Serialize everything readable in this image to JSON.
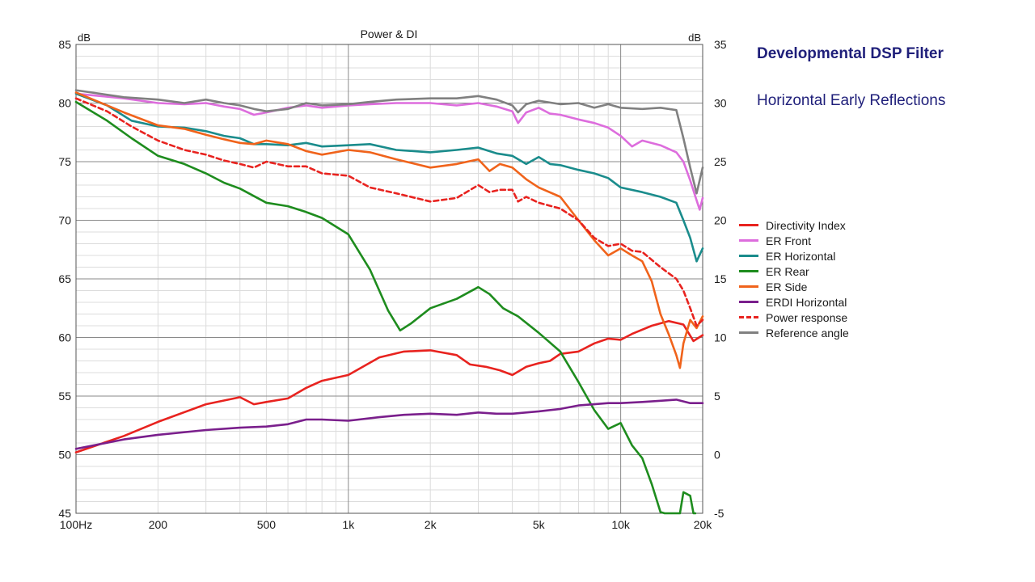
{
  "slide": {
    "heading": "Developmental DSP Filter",
    "subheading": "Horizontal Early Reflections"
  },
  "chart_data": {
    "type": "line",
    "title": "Power & DI",
    "x_scale": "log",
    "xlim": [
      100,
      20000
    ],
    "x_tick_values": [
      100,
      200,
      500,
      1000,
      2000,
      5000,
      10000,
      20000
    ],
    "x_tick_labels": [
      "100Hz",
      "200",
      "500",
      "1k",
      "2k",
      "5k",
      "10k",
      "20k"
    ],
    "y_left": {
      "unit": "dB",
      "lim": [
        45,
        85
      ],
      "ticks": [
        "85",
        "80",
        "75",
        "70",
        "65",
        "60",
        "55",
        "50",
        "45"
      ]
    },
    "y_right": {
      "unit": "dB",
      "lim": [
        -5,
        35
      ],
      "ticks": [
        "35",
        "30",
        "25",
        "20",
        "15",
        "10",
        "5",
        "0",
        "-5"
      ]
    },
    "grid": true,
    "legend_position": "right",
    "series": [
      {
        "name": "Directivity Index",
        "axis": "right",
        "color": "#e8231f",
        "dash": false,
        "points": [
          [
            100,
            0.2
          ],
          [
            150,
            1.6
          ],
          [
            200,
            2.8
          ],
          [
            300,
            4.3
          ],
          [
            400,
            4.9
          ],
          [
            450,
            4.3
          ],
          [
            500,
            4.5
          ],
          [
            600,
            4.8
          ],
          [
            700,
            5.7
          ],
          [
            800,
            6.3
          ],
          [
            1000,
            6.8
          ],
          [
            1300,
            8.3
          ],
          [
            1600,
            8.8
          ],
          [
            2000,
            8.9
          ],
          [
            2500,
            8.5
          ],
          [
            2800,
            7.7
          ],
          [
            3200,
            7.5
          ],
          [
            3600,
            7.2
          ],
          [
            4000,
            6.8
          ],
          [
            4500,
            7.5
          ],
          [
            5000,
            7.8
          ],
          [
            5500,
            8.0
          ],
          [
            6000,
            8.6
          ],
          [
            7000,
            8.8
          ],
          [
            8000,
            9.5
          ],
          [
            9000,
            9.9
          ],
          [
            10000,
            9.8
          ],
          [
            11000,
            10.3
          ],
          [
            13000,
            11.0
          ],
          [
            15000,
            11.4
          ],
          [
            17000,
            11.1
          ],
          [
            18500,
            9.7
          ],
          [
            20000,
            10.2
          ]
        ]
      },
      {
        "name": "ER Front",
        "axis": "left",
        "color": "#dd6ddd",
        "dash": false,
        "points": [
          [
            100,
            80.8
          ],
          [
            150,
            80.4
          ],
          [
            200,
            80.0
          ],
          [
            250,
            79.9
          ],
          [
            300,
            80.0
          ],
          [
            350,
            79.7
          ],
          [
            400,
            79.5
          ],
          [
            450,
            79.0
          ],
          [
            500,
            79.2
          ],
          [
            600,
            79.6
          ],
          [
            700,
            79.8
          ],
          [
            800,
            79.6
          ],
          [
            1000,
            79.8
          ],
          [
            1200,
            79.9
          ],
          [
            1500,
            80.0
          ],
          [
            2000,
            80.0
          ],
          [
            2500,
            79.8
          ],
          [
            3000,
            80.0
          ],
          [
            3500,
            79.7
          ],
          [
            4000,
            79.3
          ],
          [
            4200,
            78.3
          ],
          [
            4500,
            79.2
          ],
          [
            5000,
            79.6
          ],
          [
            5500,
            79.1
          ],
          [
            6000,
            79.0
          ],
          [
            7000,
            78.6
          ],
          [
            8000,
            78.3
          ],
          [
            9000,
            77.9
          ],
          [
            10000,
            77.2
          ],
          [
            11000,
            76.3
          ],
          [
            12000,
            76.8
          ],
          [
            14000,
            76.4
          ],
          [
            16000,
            75.8
          ],
          [
            17000,
            75.0
          ],
          [
            18000,
            73.4
          ],
          [
            19000,
            71.7
          ],
          [
            19500,
            70.9
          ],
          [
            20000,
            71.9
          ]
        ]
      },
      {
        "name": "ER Horizontal",
        "axis": "left",
        "color": "#1a8c8c",
        "dash": false,
        "points": [
          [
            100,
            80.8
          ],
          [
            130,
            79.8
          ],
          [
            160,
            78.5
          ],
          [
            200,
            78.0
          ],
          [
            250,
            77.9
          ],
          [
            300,
            77.6
          ],
          [
            350,
            77.2
          ],
          [
            400,
            77.0
          ],
          [
            450,
            76.5
          ],
          [
            500,
            76.5
          ],
          [
            600,
            76.4
          ],
          [
            700,
            76.6
          ],
          [
            800,
            76.3
          ],
          [
            1000,
            76.4
          ],
          [
            1200,
            76.5
          ],
          [
            1500,
            76.0
          ],
          [
            2000,
            75.8
          ],
          [
            2500,
            76.0
          ],
          [
            3000,
            76.2
          ],
          [
            3500,
            75.7
          ],
          [
            4000,
            75.5
          ],
          [
            4500,
            74.8
          ],
          [
            5000,
            75.4
          ],
          [
            5500,
            74.8
          ],
          [
            6000,
            74.7
          ],
          [
            7000,
            74.3
          ],
          [
            8000,
            74.0
          ],
          [
            9000,
            73.6
          ],
          [
            10000,
            72.8
          ],
          [
            12000,
            72.4
          ],
          [
            14000,
            72.0
          ],
          [
            16000,
            71.5
          ],
          [
            17000,
            70.0
          ],
          [
            18000,
            68.5
          ],
          [
            19000,
            66.5
          ],
          [
            20000,
            67.6
          ]
        ]
      },
      {
        "name": "ER Rear",
        "axis": "left",
        "color": "#1e8c1e",
        "dash": false,
        "points": [
          [
            100,
            80.1
          ],
          [
            130,
            78.5
          ],
          [
            160,
            77.0
          ],
          [
            200,
            75.5
          ],
          [
            250,
            74.8
          ],
          [
            300,
            74.0
          ],
          [
            350,
            73.2
          ],
          [
            400,
            72.7
          ],
          [
            500,
            71.5
          ],
          [
            600,
            71.2
          ],
          [
            700,
            70.7
          ],
          [
            800,
            70.2
          ],
          [
            1000,
            68.8
          ],
          [
            1200,
            65.8
          ],
          [
            1400,
            62.3
          ],
          [
            1550,
            60.6
          ],
          [
            1700,
            61.2
          ],
          [
            2000,
            62.5
          ],
          [
            2500,
            63.3
          ],
          [
            3000,
            64.3
          ],
          [
            3300,
            63.7
          ],
          [
            3700,
            62.5
          ],
          [
            4200,
            61.8
          ],
          [
            5000,
            60.4
          ],
          [
            6000,
            58.8
          ],
          [
            7000,
            56.2
          ],
          [
            8000,
            53.8
          ],
          [
            9000,
            52.2
          ],
          [
            10000,
            52.7
          ],
          [
            11000,
            50.8
          ],
          [
            12000,
            49.7
          ],
          [
            13000,
            47.5
          ],
          [
            14000,
            45.1
          ],
          [
            14500,
            44.0
          ],
          [
            16500,
            44.0
          ],
          [
            17000,
            46.8
          ],
          [
            18000,
            46.5
          ],
          [
            18500,
            45.0
          ],
          [
            18800,
            44.0
          ]
        ]
      },
      {
        "name": "ER Side",
        "axis": "left",
        "color": "#f0631b",
        "dash": false,
        "points": [
          [
            100,
            80.9
          ],
          [
            150,
            79.2
          ],
          [
            200,
            78.1
          ],
          [
            250,
            77.8
          ],
          [
            300,
            77.3
          ],
          [
            350,
            76.9
          ],
          [
            400,
            76.6
          ],
          [
            450,
            76.5
          ],
          [
            500,
            76.8
          ],
          [
            600,
            76.5
          ],
          [
            700,
            75.9
          ],
          [
            800,
            75.6
          ],
          [
            1000,
            76.0
          ],
          [
            1200,
            75.8
          ],
          [
            1500,
            75.2
          ],
          [
            2000,
            74.5
          ],
          [
            2500,
            74.8
          ],
          [
            3000,
            75.2
          ],
          [
            3300,
            74.2
          ],
          [
            3600,
            74.8
          ],
          [
            4000,
            74.5
          ],
          [
            4500,
            73.5
          ],
          [
            5000,
            72.8
          ],
          [
            6000,
            72.0
          ],
          [
            7000,
            70.0
          ],
          [
            8000,
            68.3
          ],
          [
            9000,
            67.0
          ],
          [
            10000,
            67.6
          ],
          [
            11000,
            67.0
          ],
          [
            12000,
            66.5
          ],
          [
            13000,
            64.8
          ],
          [
            14000,
            62.0
          ],
          [
            15000,
            60.3
          ],
          [
            16000,
            58.5
          ],
          [
            16500,
            57.4
          ],
          [
            17000,
            59.5
          ],
          [
            18000,
            61.5
          ],
          [
            19000,
            60.8
          ],
          [
            20000,
            61.8
          ]
        ]
      },
      {
        "name": "ERDI Horizontal",
        "axis": "right",
        "color": "#7a1f8c",
        "dash": false,
        "points": [
          [
            100,
            0.5
          ],
          [
            150,
            1.3
          ],
          [
            200,
            1.7
          ],
          [
            300,
            2.1
          ],
          [
            400,
            2.3
          ],
          [
            500,
            2.4
          ],
          [
            600,
            2.6
          ],
          [
            700,
            3.0
          ],
          [
            800,
            3.0
          ],
          [
            1000,
            2.9
          ],
          [
            1300,
            3.2
          ],
          [
            1600,
            3.4
          ],
          [
            2000,
            3.5
          ],
          [
            2500,
            3.4
          ],
          [
            3000,
            3.6
          ],
          [
            3500,
            3.5
          ],
          [
            4000,
            3.5
          ],
          [
            5000,
            3.7
          ],
          [
            6000,
            3.9
          ],
          [
            7000,
            4.2
          ],
          [
            8000,
            4.3
          ],
          [
            9000,
            4.4
          ],
          [
            10000,
            4.4
          ],
          [
            12000,
            4.5
          ],
          [
            14000,
            4.6
          ],
          [
            16000,
            4.7
          ],
          [
            18000,
            4.4
          ],
          [
            20000,
            4.4
          ]
        ]
      },
      {
        "name": "Power response",
        "axis": "left",
        "color": "#e8231f",
        "dash": true,
        "points": [
          [
            100,
            80.4
          ],
          [
            130,
            79.3
          ],
          [
            160,
            78.0
          ],
          [
            200,
            76.8
          ],
          [
            250,
            76.0
          ],
          [
            300,
            75.6
          ],
          [
            350,
            75.1
          ],
          [
            400,
            74.8
          ],
          [
            450,
            74.5
          ],
          [
            500,
            75.0
          ],
          [
            600,
            74.6
          ],
          [
            700,
            74.6
          ],
          [
            800,
            74.0
          ],
          [
            1000,
            73.8
          ],
          [
            1200,
            72.8
          ],
          [
            1500,
            72.3
          ],
          [
            2000,
            71.6
          ],
          [
            2500,
            71.9
          ],
          [
            3000,
            73.0
          ],
          [
            3300,
            72.4
          ],
          [
            3600,
            72.6
          ],
          [
            4000,
            72.6
          ],
          [
            4200,
            71.6
          ],
          [
            4500,
            72.0
          ],
          [
            5000,
            71.5
          ],
          [
            6000,
            71.0
          ],
          [
            7000,
            70.0
          ],
          [
            8000,
            68.5
          ],
          [
            9000,
            67.8
          ],
          [
            10000,
            68.0
          ],
          [
            11000,
            67.4
          ],
          [
            12000,
            67.3
          ],
          [
            14000,
            66.0
          ],
          [
            16000,
            65.0
          ],
          [
            17000,
            64.0
          ],
          [
            18000,
            62.5
          ],
          [
            19000,
            61.0
          ],
          [
            20000,
            61.5
          ]
        ]
      },
      {
        "name": "Reference angle",
        "axis": "left",
        "color": "#808080",
        "dash": false,
        "points": [
          [
            100,
            81.1
          ],
          [
            150,
            80.5
          ],
          [
            200,
            80.3
          ],
          [
            250,
            80.0
          ],
          [
            300,
            80.3
          ],
          [
            350,
            80.0
          ],
          [
            400,
            79.8
          ],
          [
            450,
            79.5
          ],
          [
            500,
            79.3
          ],
          [
            600,
            79.5
          ],
          [
            700,
            80.0
          ],
          [
            800,
            79.8
          ],
          [
            1000,
            79.9
          ],
          [
            1200,
            80.1
          ],
          [
            1500,
            80.3
          ],
          [
            2000,
            80.4
          ],
          [
            2500,
            80.4
          ],
          [
            3000,
            80.6
          ],
          [
            3500,
            80.3
          ],
          [
            4000,
            79.8
          ],
          [
            4200,
            79.2
          ],
          [
            4500,
            79.9
          ],
          [
            5000,
            80.2
          ],
          [
            6000,
            79.9
          ],
          [
            7000,
            80.0
          ],
          [
            8000,
            79.6
          ],
          [
            9000,
            79.9
          ],
          [
            10000,
            79.6
          ],
          [
            12000,
            79.5
          ],
          [
            14000,
            79.6
          ],
          [
            16000,
            79.4
          ],
          [
            17000,
            77.0
          ],
          [
            18000,
            74.5
          ],
          [
            19000,
            72.3
          ],
          [
            20000,
            74.5
          ]
        ]
      }
    ]
  }
}
